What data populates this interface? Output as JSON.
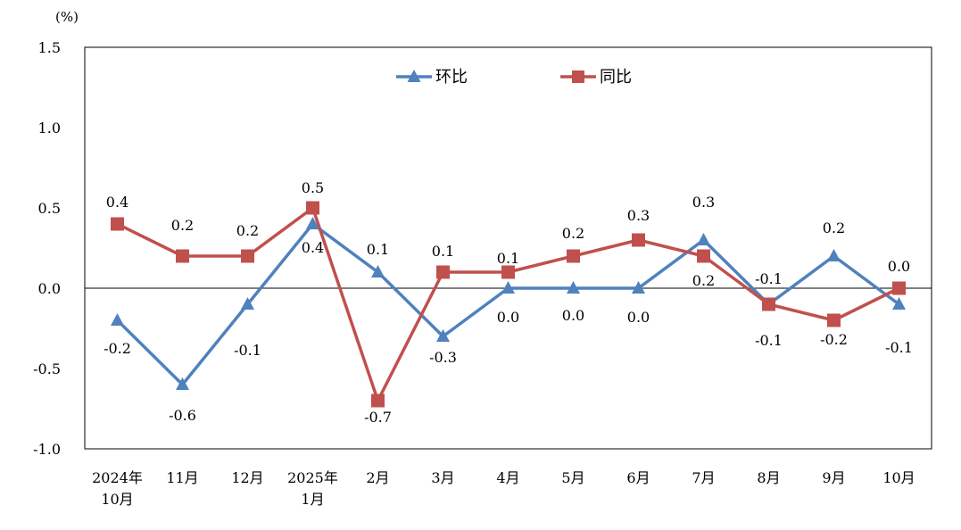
{
  "chart_data": {
    "type": "line",
    "unit_label": "(%)",
    "title": "",
    "xlabel": "",
    "ylabel": "",
    "ylim": [
      -1.0,
      1.5
    ],
    "yticks": [
      "1.5",
      "1.0",
      "0.5",
      "0.0",
      "-0.5",
      "-1.0"
    ],
    "ytick_values": [
      1.5,
      1.0,
      0.5,
      0.0,
      -0.5,
      -1.0
    ],
    "categories": [
      [
        "2024年",
        "10月"
      ],
      [
        "11月"
      ],
      [
        "12月"
      ],
      [
        "2025年",
        "1月"
      ],
      [
        "2月"
      ],
      [
        "3月"
      ],
      [
        "4月"
      ],
      [
        "5月"
      ],
      [
        "6月"
      ],
      [
        "7月"
      ],
      [
        "8月"
      ],
      [
        "9月"
      ],
      [
        "10月"
      ]
    ],
    "legend_position": "top-center",
    "series": [
      {
        "name": "环比",
        "color": "#4F81BD",
        "marker": "triangle",
        "values": [
          -0.2,
          -0.6,
          -0.1,
          0.4,
          0.1,
          -0.3,
          0.0,
          0.0,
          0.0,
          0.3,
          -0.1,
          0.2,
          -0.1
        ],
        "labels": [
          "-0.2",
          "-0.6",
          "-0.1",
          "0.4",
          "0.1",
          "-0.3",
          "0.0",
          "0.0",
          "0.0",
          "0.3",
          "-0.1",
          "0.2",
          "-0.1"
        ]
      },
      {
        "name": "同比",
        "color": "#C0504D",
        "marker": "square",
        "values": [
          0.4,
          0.2,
          0.2,
          0.5,
          -0.7,
          0.1,
          0.1,
          0.2,
          0.3,
          0.2,
          -0.1,
          -0.2,
          0.0
        ],
        "labels": [
          "0.4",
          "0.2",
          "0.2",
          "0.5",
          "-0.7",
          "0.1",
          "0.1",
          "0.2",
          "0.3",
          "0.2",
          "-0.1",
          "-0.2",
          "0.0"
        ]
      }
    ]
  }
}
